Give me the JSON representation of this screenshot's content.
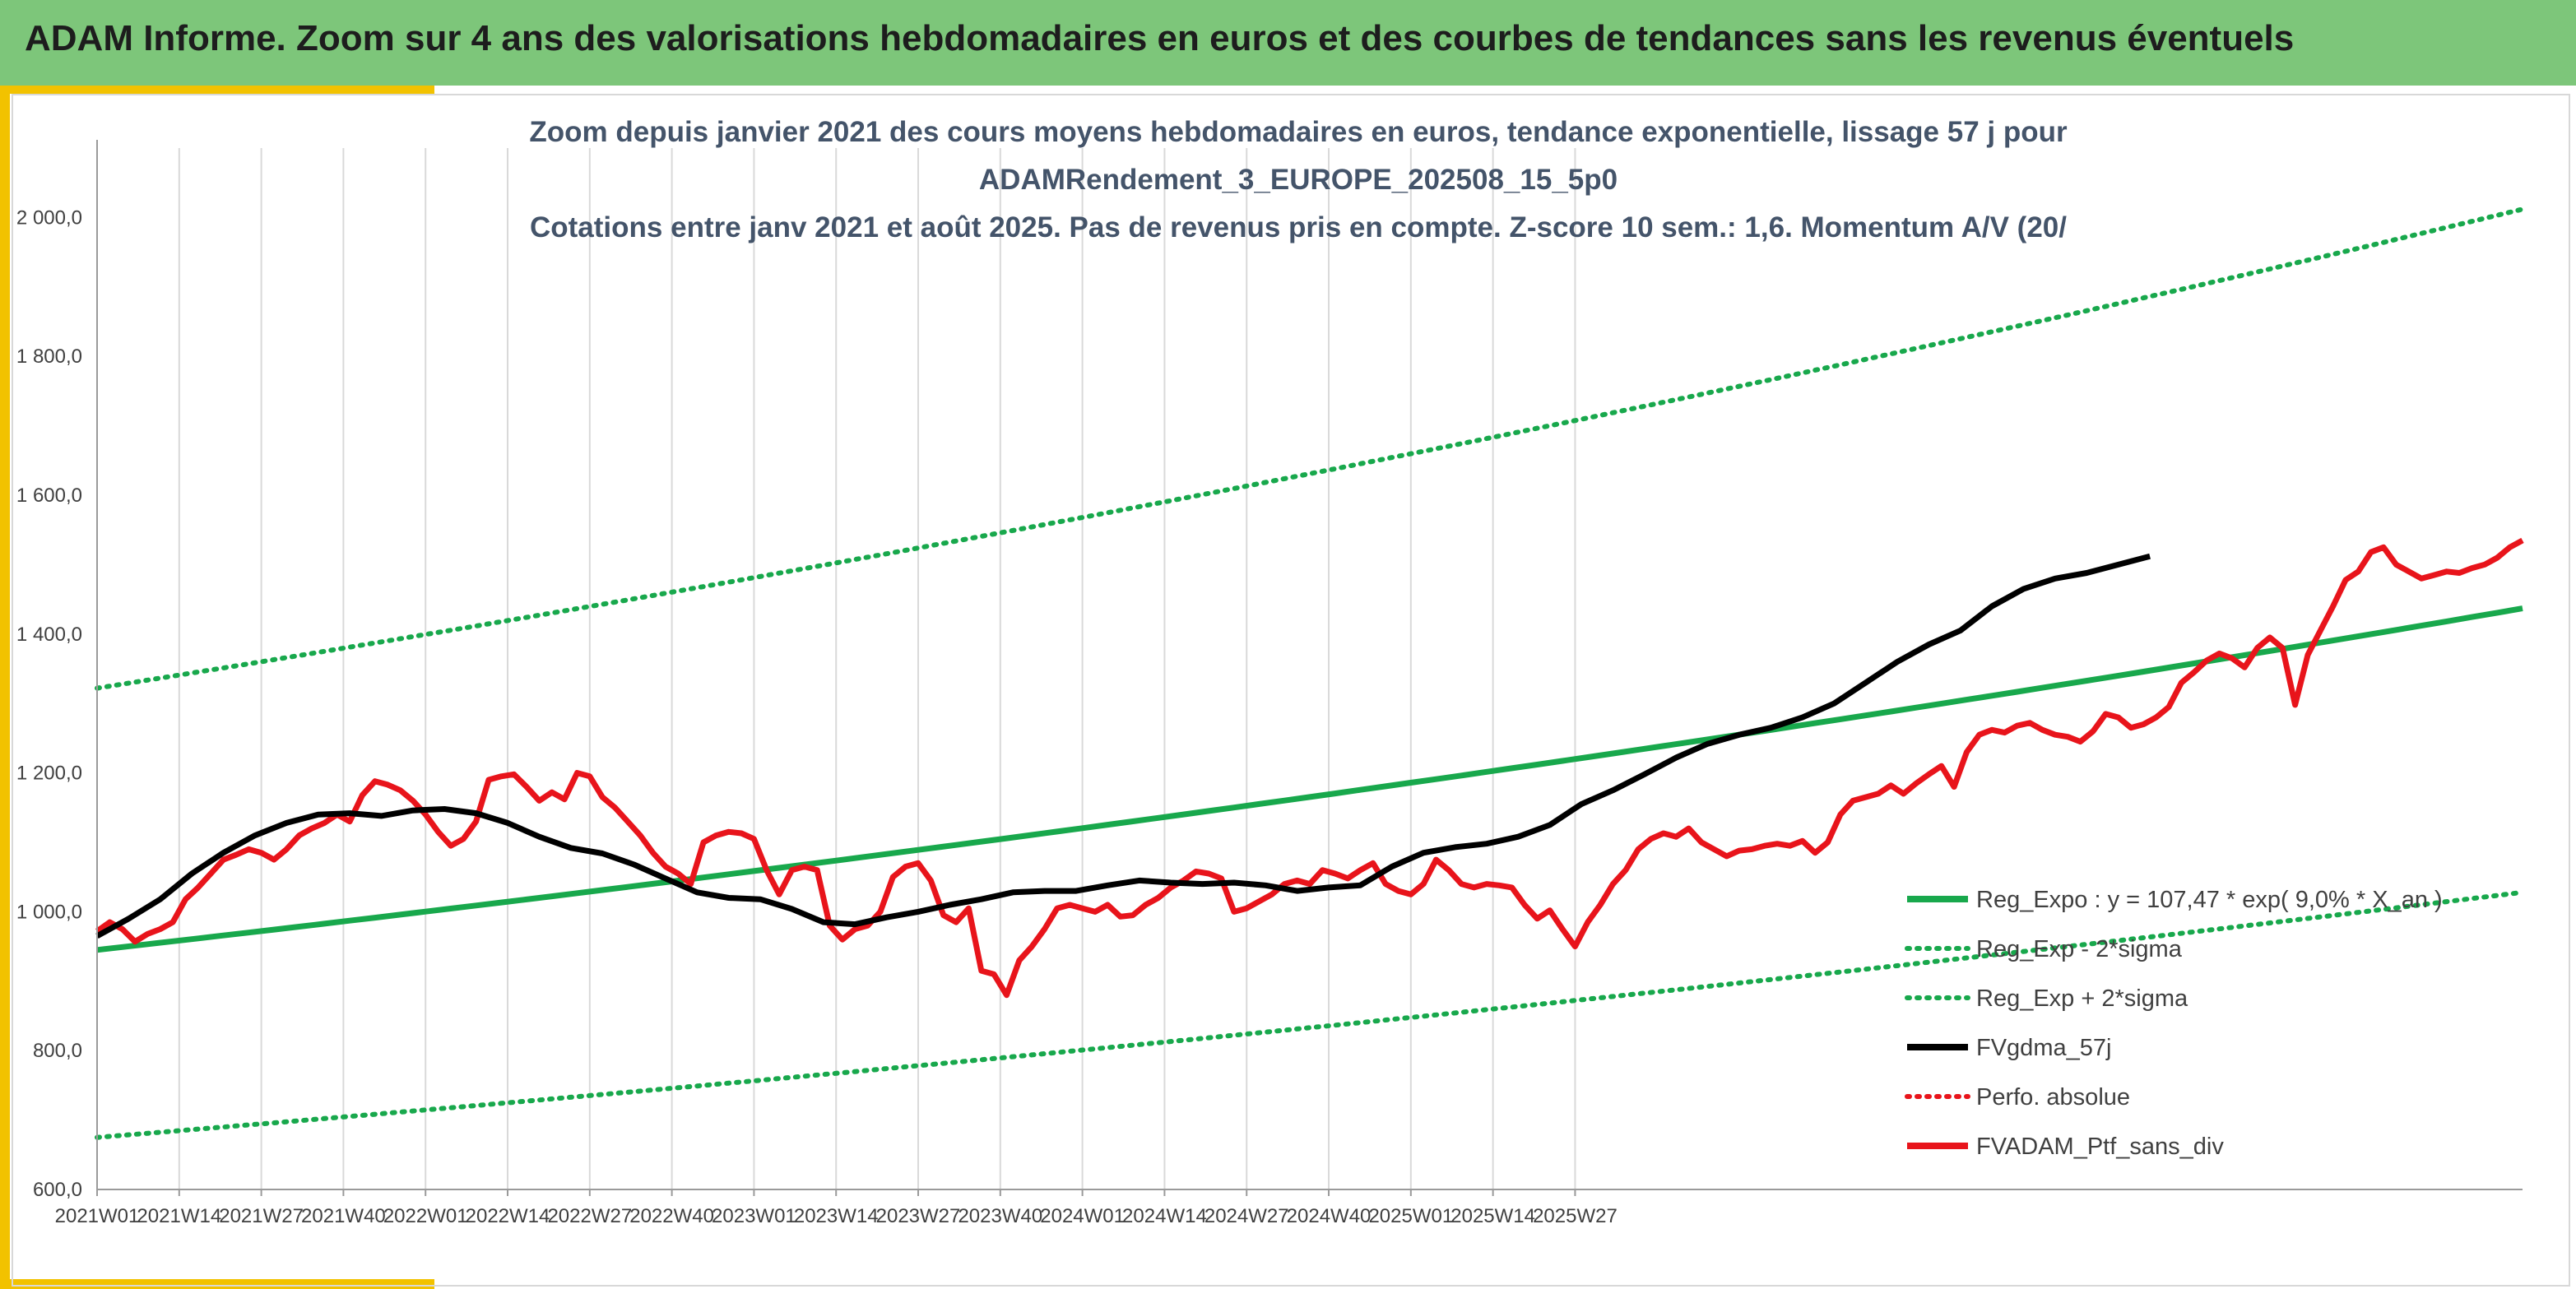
{
  "banner": {
    "title": "ADAM Informe. Zoom sur 4 ans des valorisations hebdomadaires en euros et des courbes de tendances sans les revenus éventuels"
  },
  "colors": {
    "banner": "#7dc67a",
    "accent": "#f2c200",
    "trend": "#18a84c",
    "sma": "#000000",
    "price": "#e8141b"
  },
  "chart_data": {
    "type": "line",
    "title": [
      "Zoom depuis janvier 2021 des cours moyens hebdomadaires en euros, tendance exponentielle, lissage 57 j pour",
      "ADAMRendement_3_EUROPE_202508_15_5p0",
      "Cotations entre janv 2021 et août 2025. Pas de revenus pris en compte. Z-score 10 sem.: 1,6. Momentum A/V (20/"
    ],
    "x_tick_labels": [
      "2021W01",
      "2021W14",
      "2021W27",
      "2021W40",
      "2022W01",
      "2022W14",
      "2022W27",
      "2022W40",
      "2023W01",
      "2023W14",
      "2023W27",
      "2023W40",
      "2024W01",
      "2024W14",
      "2024W27",
      "2024W40",
      "2025W01",
      "2025W14",
      "2025W27"
    ],
    "y_tick_labels": [
      "600,0",
      "800,0",
      "1 000,0",
      "1 200,0",
      "1 400,0",
      "1 600,0",
      "1 800,0",
      "2 000,0"
    ],
    "ylim": [
      600,
      2100
    ],
    "grid": "vertical",
    "legend_position": "right",
    "legend": [
      {
        "label": "Reg_Expo : y = 107,47 * exp( 9,0% * X_an )",
        "style": "solid",
        "color": "#18a84c"
      },
      {
        "label": "Reg_Exp - 2*sigma",
        "style": "dotted",
        "color": "#18a84c"
      },
      {
        "label": "Reg_Exp + 2*sigma",
        "style": "dotted",
        "color": "#18a84c"
      },
      {
        "label": "FVgdma_57j",
        "style": "solid",
        "color": "#000000"
      },
      {
        "label": "Perfo. absolue",
        "style": "dotted",
        "color": "#e8141b"
      },
      {
        "label": "FVADAM_Ptf_sans_div",
        "style": "solid",
        "color": "#e8141b"
      }
    ],
    "trend_lines": {
      "reg_expo": {
        "start": 945,
        "end": 1437
      },
      "minus_2sigma": {
        "start": 675,
        "end": 1028
      },
      "plus_2sigma": {
        "start": 1322,
        "end": 2012
      }
    },
    "series": [
      {
        "name": "FVgdma_57j",
        "points": [
          [
            0,
            965
          ],
          [
            5,
            990
          ],
          [
            10,
            1018
          ],
          [
            15,
            1055
          ],
          [
            20,
            1085
          ],
          [
            25,
            1110
          ],
          [
            30,
            1128
          ],
          [
            35,
            1140
          ],
          [
            40,
            1142
          ],
          [
            45,
            1138
          ],
          [
            50,
            1146
          ],
          [
            55,
            1148
          ],
          [
            60,
            1142
          ],
          [
            65,
            1128
          ],
          [
            70,
            1108
          ],
          [
            75,
            1092
          ],
          [
            80,
            1084
          ],
          [
            85,
            1068
          ],
          [
            90,
            1048
          ],
          [
            95,
            1028
          ],
          [
            100,
            1020
          ],
          [
            105,
            1018
          ],
          [
            110,
            1004
          ],
          [
            115,
            985
          ],
          [
            120,
            982
          ],
          [
            125,
            992
          ],
          [
            130,
            1000
          ],
          [
            135,
            1010
          ],
          [
            140,
            1018
          ],
          [
            145,
            1028
          ],
          [
            150,
            1030
          ],
          [
            155,
            1030
          ],
          [
            160,
            1038
          ],
          [
            165,
            1045
          ],
          [
            170,
            1042
          ],
          [
            175,
            1040
          ],
          [
            180,
            1042
          ],
          [
            185,
            1038
          ],
          [
            190,
            1030
          ],
          [
            195,
            1035
          ],
          [
            200,
            1038
          ],
          [
            205,
            1065
          ],
          [
            210,
            1085
          ],
          [
            215,
            1093
          ],
          [
            220,
            1098
          ],
          [
            225,
            1108
          ],
          [
            230,
            1125
          ],
          [
            235,
            1155
          ],
          [
            240,
            1175
          ],
          [
            245,
            1198
          ],
          [
            250,
            1222
          ],
          [
            255,
            1242
          ],
          [
            260,
            1255
          ],
          [
            265,
            1265
          ],
          [
            270,
            1280
          ],
          [
            275,
            1300
          ],
          [
            280,
            1330
          ],
          [
            285,
            1360
          ],
          [
            290,
            1385
          ],
          [
            295,
            1405
          ],
          [
            300,
            1440
          ],
          [
            305,
            1465
          ],
          [
            310,
            1480
          ],
          [
            315,
            1488
          ],
          [
            320,
            1500
          ],
          [
            325,
            1512
          ]
        ]
      },
      {
        "name": "FVADAM_Ptf_sans_div",
        "points": [
          [
            0,
            972
          ],
          [
            2,
            985
          ],
          [
            4,
            975
          ],
          [
            6,
            957
          ],
          [
            8,
            968
          ],
          [
            10,
            975
          ],
          [
            12,
            985
          ],
          [
            14,
            1018
          ],
          [
            16,
            1035
          ],
          [
            18,
            1055
          ],
          [
            20,
            1075
          ],
          [
            22,
            1082
          ],
          [
            24,
            1090
          ],
          [
            26,
            1085
          ],
          [
            28,
            1075
          ],
          [
            30,
            1090
          ],
          [
            32,
            1110
          ],
          [
            34,
            1120
          ],
          [
            36,
            1128
          ],
          [
            38,
            1140
          ],
          [
            40,
            1130
          ],
          [
            42,
            1168
          ],
          [
            44,
            1188
          ],
          [
            46,
            1183
          ],
          [
            48,
            1175
          ],
          [
            50,
            1160
          ],
          [
            52,
            1140
          ],
          [
            54,
            1115
          ],
          [
            56,
            1095
          ],
          [
            58,
            1105
          ],
          [
            60,
            1130
          ],
          [
            62,
            1190
          ],
          [
            64,
            1195
          ],
          [
            66,
            1198
          ],
          [
            68,
            1180
          ],
          [
            70,
            1160
          ],
          [
            72,
            1172
          ],
          [
            74,
            1162
          ],
          [
            76,
            1200
          ],
          [
            78,
            1195
          ],
          [
            80,
            1165
          ],
          [
            82,
            1150
          ],
          [
            84,
            1130
          ],
          [
            86,
            1110
          ],
          [
            88,
            1085
          ],
          [
            90,
            1065
          ],
          [
            92,
            1055
          ],
          [
            94,
            1040
          ],
          [
            96,
            1100
          ],
          [
            98,
            1110
          ],
          [
            100,
            1115
          ],
          [
            102,
            1113
          ],
          [
            104,
            1105
          ],
          [
            106,
            1060
          ],
          [
            108,
            1025
          ],
          [
            110,
            1060
          ],
          [
            112,
            1065
          ],
          [
            114,
            1060
          ],
          [
            116,
            980
          ],
          [
            118,
            960
          ],
          [
            120,
            975
          ],
          [
            122,
            980
          ],
          [
            124,
            1000
          ],
          [
            126,
            1050
          ],
          [
            128,
            1065
          ],
          [
            130,
            1070
          ],
          [
            132,
            1045
          ],
          [
            134,
            995
          ],
          [
            136,
            985
          ],
          [
            138,
            1005
          ],
          [
            140,
            915
          ],
          [
            142,
            910
          ],
          [
            144,
            880
          ],
          [
            146,
            930
          ],
          [
            148,
            950
          ],
          [
            150,
            975
          ],
          [
            152,
            1005
          ],
          [
            154,
            1010
          ],
          [
            156,
            1005
          ],
          [
            158,
            1000
          ],
          [
            160,
            1010
          ],
          [
            162,
            993
          ],
          [
            164,
            995
          ],
          [
            166,
            1010
          ],
          [
            168,
            1020
          ],
          [
            170,
            1035
          ],
          [
            172,
            1045
          ],
          [
            174,
            1058
          ],
          [
            176,
            1055
          ],
          [
            178,
            1048
          ],
          [
            180,
            1000
          ],
          [
            182,
            1005
          ],
          [
            184,
            1015
          ],
          [
            186,
            1025
          ],
          [
            188,
            1040
          ],
          [
            190,
            1045
          ],
          [
            192,
            1040
          ],
          [
            194,
            1060
          ],
          [
            196,
            1055
          ],
          [
            198,
            1048
          ],
          [
            200,
            1060
          ],
          [
            202,
            1070
          ],
          [
            204,
            1040
          ],
          [
            206,
            1030
          ],
          [
            208,
            1025
          ],
          [
            210,
            1040
          ],
          [
            212,
            1075
          ],
          [
            214,
            1060
          ],
          [
            216,
            1040
          ],
          [
            218,
            1035
          ],
          [
            220,
            1040
          ],
          [
            222,
            1038
          ],
          [
            224,
            1035
          ],
          [
            226,
            1010
          ],
          [
            228,
            990
          ],
          [
            230,
            1002
          ],
          [
            232,
            975
          ],
          [
            234,
            950
          ],
          [
            236,
            985
          ],
          [
            238,
            1010
          ],
          [
            240,
            1040
          ],
          [
            242,
            1060
          ],
          [
            244,
            1090
          ],
          [
            246,
            1105
          ],
          [
            248,
            1113
          ],
          [
            250,
            1108
          ],
          [
            252,
            1120
          ],
          [
            254,
            1100
          ],
          [
            256,
            1090
          ],
          [
            258,
            1080
          ],
          [
            260,
            1088
          ],
          [
            262,
            1090
          ],
          [
            264,
            1095
          ],
          [
            266,
            1098
          ],
          [
            268,
            1095
          ],
          [
            270,
            1102
          ],
          [
            272,
            1085
          ],
          [
            274,
            1100
          ],
          [
            276,
            1140
          ],
          [
            278,
            1160
          ],
          [
            280,
            1165
          ],
          [
            282,
            1170
          ],
          [
            284,
            1182
          ],
          [
            286,
            1170
          ],
          [
            288,
            1185
          ],
          [
            290,
            1198
          ],
          [
            292,
            1210
          ],
          [
            294,
            1180
          ],
          [
            296,
            1230
          ],
          [
            298,
            1255
          ],
          [
            300,
            1262
          ],
          [
            302,
            1258
          ],
          [
            304,
            1268
          ],
          [
            306,
            1272
          ],
          [
            308,
            1262
          ],
          [
            310,
            1255
          ],
          [
            312,
            1252
          ],
          [
            314,
            1245
          ],
          [
            316,
            1260
          ],
          [
            318,
            1285
          ],
          [
            320,
            1280
          ],
          [
            322,
            1265
          ],
          [
            324,
            1270
          ],
          [
            326,
            1280
          ],
          [
            328,
            1295
          ],
          [
            330,
            1330
          ],
          [
            332,
            1345
          ],
          [
            334,
            1362
          ],
          [
            336,
            1372
          ],
          [
            338,
            1365
          ],
          [
            340,
            1352
          ],
          [
            342,
            1380
          ],
          [
            344,
            1395
          ],
          [
            346,
            1380
          ],
          [
            348,
            1298
          ],
          [
            350,
            1370
          ],
          [
            352,
            1405
          ],
          [
            354,
            1440
          ],
          [
            356,
            1478
          ],
          [
            358,
            1490
          ],
          [
            360,
            1518
          ],
          [
            362,
            1525
          ],
          [
            364,
            1500
          ],
          [
            366,
            1490
          ],
          [
            368,
            1480
          ],
          [
            370,
            1485
          ],
          [
            372,
            1490
          ],
          [
            374,
            1488
          ],
          [
            376,
            1495
          ],
          [
            378,
            1500
          ],
          [
            380,
            1510
          ],
          [
            382,
            1525
          ],
          [
            384,
            1535
          ]
        ]
      }
    ]
  }
}
